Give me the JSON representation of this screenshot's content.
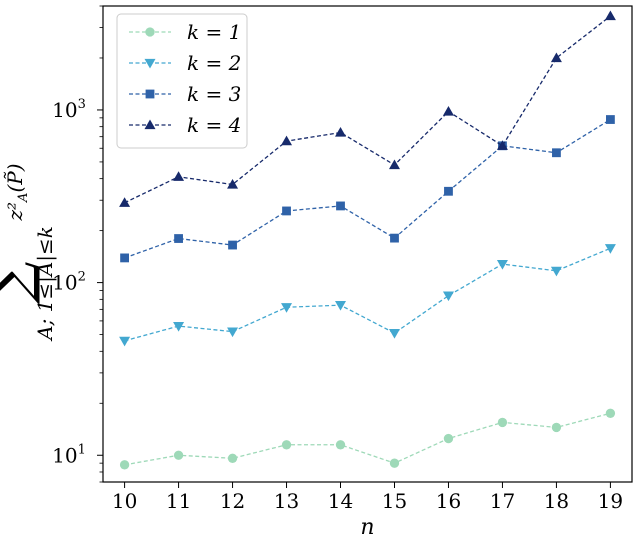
{
  "chart_data": {
    "type": "line",
    "title": "",
    "xlabel": "n",
    "ylabel": "∑_{A; 1≤|A|≤k} z²_A(P̃)",
    "yscale": "log",
    "xlim": [
      9.6,
      19.4
    ],
    "ylim": [
      7,
      4000
    ],
    "x": [
      10,
      11,
      12,
      13,
      14,
      15,
      16,
      17,
      18,
      19
    ],
    "x_tick_labels": [
      "10",
      "11",
      "12",
      "13",
      "14",
      "15",
      "16",
      "17",
      "18",
      "19"
    ],
    "y_ticks": [
      {
        "value": 10,
        "label_base": "10",
        "label_exp": "1"
      },
      {
        "value": 100,
        "label_base": "10",
        "label_exp": "2"
      },
      {
        "value": 1000,
        "label_base": "10",
        "label_exp": "3"
      }
    ],
    "grid": false,
    "legend_position": "top-left",
    "series": [
      {
        "name": "k = 1",
        "color": "#9ed9b8",
        "marker": "circle",
        "values": [
          8.8,
          10.0,
          9.6,
          11.5,
          11.5,
          9.0,
          12.5,
          15.5,
          14.5,
          17.5
        ]
      },
      {
        "name": "k = 2",
        "color": "#43a8d0",
        "marker": "triangle-down",
        "values": [
          46,
          56,
          52,
          72,
          74,
          51,
          84,
          128,
          117,
          158
        ]
      },
      {
        "name": "k = 3",
        "color": "#2f62a8",
        "marker": "square",
        "values": [
          139,
          180,
          165,
          260,
          278,
          181,
          338,
          620,
          565,
          880
        ]
      },
      {
        "name": "k = 4",
        "color": "#172a6b",
        "marker": "triangle-up",
        "values": [
          290,
          410,
          370,
          660,
          740,
          480,
          980,
          620,
          2000,
          3500
        ]
      }
    ]
  }
}
